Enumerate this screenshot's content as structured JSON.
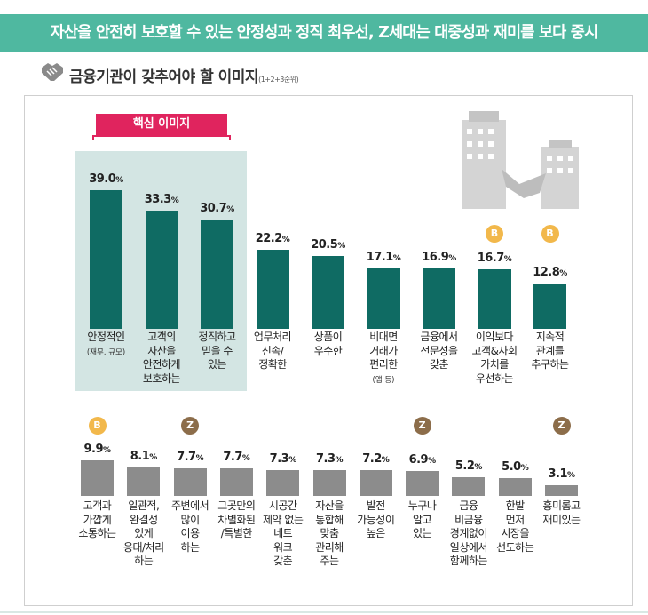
{
  "header": {
    "banner": "자산을 안전히 보호할 수 있는 안정성과 정직 최우선, Z세대는 대중성과 재미를 보다 중시",
    "subtitle": "금융기관이 갖추어야 할 이미지",
    "subtitle_note": "(1+2+3순위)",
    "highlight_label": "핵심 이미지"
  },
  "chart_data": [
    {
      "type": "bar",
      "color": "#0f6b63",
      "ylim": [
        0,
        40
      ],
      "categories": [
        "안정적인",
        "고객의\n자산을\n안전하게\n보호하는",
        "정직하고\n믿을 수\n있는",
        "업무처리\n신속/\n정확한",
        "상품이\n우수한",
        "비대면\n거래가\n편리한",
        "금융에서\n전문성을\n갖춘",
        "이익보다\n고객&사회\n가치를\n우선하는",
        "지속적\n관계를\n추구하는"
      ],
      "sub_labels": [
        "(재무, 규모)",
        null,
        null,
        null,
        null,
        "(앱 등)",
        null,
        null,
        null
      ],
      "badges": [
        null,
        null,
        null,
        null,
        null,
        null,
        null,
        "B",
        "B"
      ],
      "values": [
        39.0,
        33.3,
        30.7,
        22.2,
        20.5,
        17.1,
        16.9,
        16.7,
        12.8
      ],
      "value_labels": [
        "39.0%",
        "33.3%",
        "30.7%",
        "22.2%",
        "20.5%",
        "17.1%",
        "16.9%",
        "16.7%",
        "12.8%"
      ]
    },
    {
      "type": "bar",
      "color": "#8c8c8c",
      "ylim": [
        0,
        40
      ],
      "categories": [
        "고객과\n가깝게\n소통하는",
        "일관적,\n완결성\n있게\n응대/처리\n하는",
        "주변에서\n많이\n이용\n하는",
        "그곳만의\n차별화된\n/특별한",
        "시공간\n제약 없는\n네트\n워크\n갖춘",
        "자산을\n통합해\n맞춤\n관리해\n주는",
        "발전\n가능성이\n높은",
        "누구나\n알고\n있는",
        "금융\n비금융\n경계없이\n일상에서\n함께하는",
        "한발\n먼저\n시장을\n선도하는",
        "흥미롭고\n재미있는"
      ],
      "badges": [
        "B",
        null,
        "Z",
        null,
        null,
        null,
        null,
        "Z",
        null,
        null,
        "Z"
      ],
      "values": [
        9.9,
        8.1,
        7.7,
        7.7,
        7.3,
        7.3,
        7.2,
        6.9,
        5.2,
        5.0,
        3.1
      ],
      "value_labels": [
        "9.9%",
        "8.1%",
        "7.7%",
        "7.7%",
        "7.3%",
        "7.3%",
        "7.2%",
        "6.9%",
        "5.2%",
        "5.0%",
        "3.1%"
      ]
    }
  ]
}
